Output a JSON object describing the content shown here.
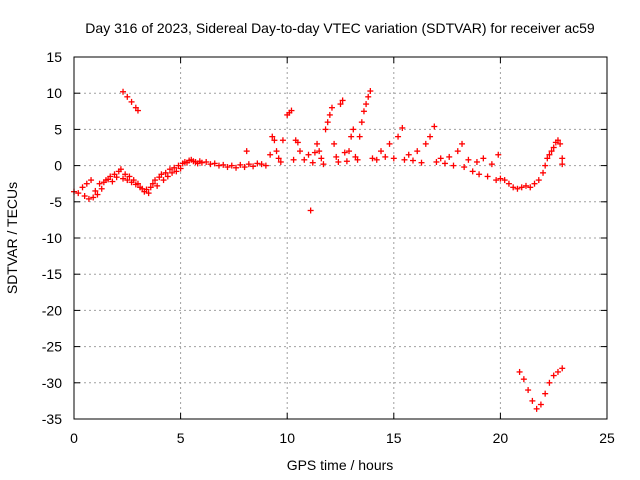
{
  "chart_data": {
    "type": "scatter",
    "title": "Day 316 of 2023, Sidereal Day-to-day VTEC variation (SDTVAR) for receiver ac59",
    "xlabel": "GPS time / hours",
    "ylabel": "SDTVAR / TECUs",
    "xlim": [
      0,
      25
    ],
    "ylim": [
      -35,
      15
    ],
    "xticks": [
      0,
      5,
      10,
      15,
      20,
      25
    ],
    "yticks": [
      15,
      10,
      5,
      0,
      -5,
      -10,
      -15,
      -20,
      -25,
      -30,
      -35
    ],
    "grid": true,
    "marker": "+",
    "series": [
      {
        "name": "SDTVAR",
        "color": "#ff0000",
        "points": [
          [
            0.0,
            -3.6
          ],
          [
            0.2,
            -3.8
          ],
          [
            0.4,
            -3.0
          ],
          [
            0.5,
            -4.2
          ],
          [
            0.6,
            -2.5
          ],
          [
            0.7,
            -4.6
          ],
          [
            0.8,
            -2.0
          ],
          [
            0.9,
            -4.4
          ],
          [
            1.0,
            -3.5
          ],
          [
            1.1,
            -4.0
          ],
          [
            1.2,
            -2.5
          ],
          [
            1.3,
            -3.2
          ],
          [
            1.4,
            -2.3
          ],
          [
            1.5,
            -2.0
          ],
          [
            1.6,
            -1.9
          ],
          [
            1.7,
            -1.5
          ],
          [
            1.8,
            -2.2
          ],
          [
            1.9,
            -1.2
          ],
          [
            2.0,
            -1.6
          ],
          [
            2.1,
            -0.8
          ],
          [
            2.2,
            -0.5
          ],
          [
            2.3,
            -1.8
          ],
          [
            2.4,
            -1.2
          ],
          [
            2.5,
            -2.0
          ],
          [
            2.6,
            -1.5
          ],
          [
            2.7,
            -2.3
          ],
          [
            2.8,
            -2.0
          ],
          [
            2.9,
            -2.6
          ],
          [
            3.0,
            -2.5
          ],
          [
            3.1,
            -3.0
          ],
          [
            3.2,
            -3.2
          ],
          [
            3.3,
            -3.6
          ],
          [
            3.4,
            -3.3
          ],
          [
            3.5,
            -3.8
          ],
          [
            3.6,
            -3.0
          ],
          [
            3.7,
            -2.5
          ],
          [
            3.8,
            -2.0
          ],
          [
            3.9,
            -2.8
          ],
          [
            4.0,
            -1.6
          ],
          [
            4.1,
            -1.2
          ],
          [
            4.2,
            -2.0
          ],
          [
            4.3,
            -1.0
          ],
          [
            4.4,
            -1.5
          ],
          [
            4.5,
            -0.5
          ],
          [
            4.6,
            -1.0
          ],
          [
            4.7,
            -0.3
          ],
          [
            4.8,
            -0.8
          ],
          [
            4.9,
            0.0
          ],
          [
            5.0,
            -0.4
          ],
          [
            5.1,
            0.3
          ],
          [
            5.2,
            0.5
          ],
          [
            5.3,
            0.4
          ],
          [
            5.4,
            0.7
          ],
          [
            5.5,
            0.8
          ],
          [
            5.6,
            0.6
          ],
          [
            5.7,
            0.5
          ],
          [
            5.8,
            0.3
          ],
          [
            5.9,
            0.6
          ],
          [
            6.0,
            0.4
          ],
          [
            6.2,
            0.5
          ],
          [
            6.4,
            0.2
          ],
          [
            6.6,
            0.3
          ],
          [
            6.8,
            0.0
          ],
          [
            7.0,
            0.1
          ],
          [
            7.2,
            -0.2
          ],
          [
            7.4,
            0.0
          ],
          [
            7.6,
            -0.3
          ],
          [
            7.8,
            0.1
          ],
          [
            8.0,
            -0.2
          ],
          [
            8.2,
            0.2
          ],
          [
            8.4,
            -0.1
          ],
          [
            8.6,
            0.3
          ],
          [
            8.8,
            0.2
          ],
          [
            8.1,
            2.0
          ],
          [
            9.0,
            0.0
          ],
          [
            9.2,
            1.5
          ],
          [
            9.3,
            4.0
          ],
          [
            9.4,
            3.5
          ],
          [
            9.5,
            2.0
          ],
          [
            9.6,
            1.0
          ],
          [
            9.7,
            0.5
          ],
          [
            9.8,
            3.5
          ],
          [
            10.0,
            7.0
          ],
          [
            10.1,
            7.3
          ],
          [
            10.2,
            7.6
          ],
          [
            10.3,
            0.8
          ],
          [
            10.4,
            3.5
          ],
          [
            10.5,
            3.2
          ],
          [
            10.6,
            2.0
          ],
          [
            10.8,
            0.8
          ],
          [
            11.0,
            1.5
          ],
          [
            11.1,
            -6.2
          ],
          [
            11.2,
            0.4
          ],
          [
            11.3,
            1.8
          ],
          [
            11.4,
            3.0
          ],
          [
            11.5,
            2.0
          ],
          [
            11.6,
            1.0
          ],
          [
            11.7,
            0.2
          ],
          [
            11.8,
            5.0
          ],
          [
            11.9,
            6.0
          ],
          [
            12.0,
            7.0
          ],
          [
            12.1,
            8.0
          ],
          [
            12.2,
            3.0
          ],
          [
            12.3,
            1.2
          ],
          [
            12.4,
            0.5
          ],
          [
            12.5,
            8.5
          ],
          [
            12.6,
            9.0
          ],
          [
            12.7,
            1.8
          ],
          [
            12.8,
            0.6
          ],
          [
            12.9,
            2.0
          ],
          [
            13.0,
            4.0
          ],
          [
            13.1,
            5.0
          ],
          [
            13.2,
            1.2
          ],
          [
            13.3,
            0.8
          ],
          [
            13.4,
            4.0
          ],
          [
            13.5,
            6.0
          ],
          [
            13.6,
            7.5
          ],
          [
            13.7,
            8.5
          ],
          [
            13.8,
            9.5
          ],
          [
            13.9,
            10.3
          ],
          [
            14.0,
            1.0
          ],
          [
            14.2,
            0.8
          ],
          [
            14.4,
            2.0
          ],
          [
            14.6,
            1.2
          ],
          [
            14.8,
            3.0
          ],
          [
            15.0,
            1.0
          ],
          [
            15.2,
            4.0
          ],
          [
            15.4,
            5.2
          ],
          [
            15.5,
            0.8
          ],
          [
            15.7,
            1.5
          ],
          [
            15.9,
            0.7
          ],
          [
            16.1,
            2.0
          ],
          [
            16.3,
            0.4
          ],
          [
            16.5,
            3.0
          ],
          [
            16.7,
            4.0
          ],
          [
            16.9,
            5.4
          ],
          [
            17.0,
            0.5
          ],
          [
            17.2,
            1.0
          ],
          [
            17.4,
            0.3
          ],
          [
            17.6,
            1.2
          ],
          [
            17.8,
            0.0
          ],
          [
            18.0,
            2.0
          ],
          [
            18.2,
            3.0
          ],
          [
            18.3,
            -0.2
          ],
          [
            18.5,
            0.8
          ],
          [
            18.7,
            -0.8
          ],
          [
            18.9,
            0.5
          ],
          [
            19.0,
            -1.2
          ],
          [
            19.2,
            1.0
          ],
          [
            19.4,
            -1.5
          ],
          [
            19.6,
            0.2
          ],
          [
            19.8,
            -2.0
          ],
          [
            19.9,
            1.5
          ],
          [
            20.0,
            -1.8
          ],
          [
            20.2,
            -2.0
          ],
          [
            20.4,
            -2.5
          ],
          [
            20.6,
            -3.0
          ],
          [
            20.8,
            -3.2
          ],
          [
            21.0,
            -3.0
          ],
          [
            21.2,
            -2.8
          ],
          [
            21.4,
            -3.0
          ],
          [
            21.6,
            -2.5
          ],
          [
            21.8,
            -2.0
          ],
          [
            22.0,
            -1.0
          ],
          [
            22.1,
            0.0
          ],
          [
            22.2,
            1.0
          ],
          [
            22.3,
            1.5
          ],
          [
            22.4,
            2.0
          ],
          [
            22.5,
            2.5
          ],
          [
            22.6,
            3.2
          ],
          [
            22.7,
            3.5
          ],
          [
            22.8,
            3.0
          ],
          [
            22.9,
            1.0
          ],
          [
            22.9,
            0.2
          ],
          [
            2.3,
            10.2
          ],
          [
            2.5,
            9.5
          ],
          [
            2.7,
            8.8
          ],
          [
            2.9,
            8.0
          ],
          [
            3.0,
            7.6
          ],
          [
            20.9,
            -28.5
          ],
          [
            21.1,
            -29.5
          ],
          [
            21.3,
            -31.0
          ],
          [
            21.5,
            -32.5
          ],
          [
            21.7,
            -33.6
          ],
          [
            21.9,
            -33.0
          ],
          [
            22.1,
            -31.5
          ],
          [
            22.3,
            -30.0
          ],
          [
            22.5,
            -29.0
          ],
          [
            22.7,
            -28.5
          ],
          [
            22.9,
            -28.0
          ]
        ]
      }
    ]
  }
}
